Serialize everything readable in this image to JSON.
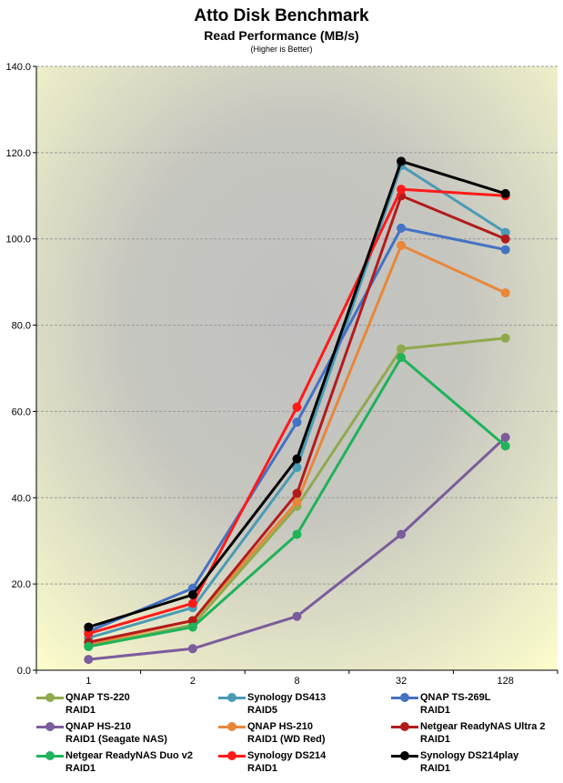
{
  "title": "Atto Disk Benchmark",
  "subtitle": "Read Performance (MB/s)",
  "note": "(Higher is Better)",
  "chart_data": {
    "type": "line",
    "x": [
      "1",
      "2",
      "8",
      "32",
      "128"
    ],
    "ylim": [
      0,
      140
    ],
    "yticks": [
      "0.0",
      "20.0",
      "40.0",
      "60.0",
      "80.0",
      "100.0",
      "120.0",
      "140.0"
    ],
    "grid": true,
    "legend_position": "bottom",
    "series": [
      {
        "name": "QNAP TS-220",
        "name2": "RAID1",
        "color": "#8faa4c",
        "values": [
          5.5,
          10.5,
          38,
          74.5,
          77
        ]
      },
      {
        "name": "Synology DS413",
        "name2": "RAID5",
        "color": "#4a9bb5",
        "values": [
          7.5,
          14.5,
          47,
          117,
          101.5
        ]
      },
      {
        "name": "QNAP TS-269L",
        "name2": "RAID1",
        "color": "#4472c4",
        "values": [
          9,
          19,
          57.5,
          102.5,
          97.5
        ]
      },
      {
        "name": "QNAP HS-210",
        "name2": "RAID1 (Seagate NAS)",
        "color": "#7b5c9c",
        "values": [
          2.5,
          5,
          12.5,
          31.5,
          54
        ]
      },
      {
        "name": "QNAP HS-210",
        "name2": "RAID1 (WD Red)",
        "color": "#e8873a",
        "values": [
          6,
          11.5,
          39,
          98.5,
          87.5
        ]
      },
      {
        "name": "Netgear ReadyNAS Ultra 2",
        "name2": "RAID1",
        "color": "#b31b1b",
        "values": [
          6.5,
          11.5,
          41,
          110,
          100
        ]
      },
      {
        "name": "Netgear ReadyNAS Duo v2",
        "name2": "RAID1",
        "color": "#1fb35a",
        "values": [
          5.5,
          10,
          31.5,
          72.5,
          52
        ]
      },
      {
        "name": "Synology DS214",
        "name2": "RAID1",
        "color": "#ff1a1a",
        "values": [
          8.5,
          15.5,
          61,
          111.5,
          110
        ]
      },
      {
        "name": "Synology DS214play",
        "name2": "RAID1",
        "color": "#000000",
        "values": [
          10,
          17.5,
          49,
          118,
          110.5
        ]
      }
    ]
  }
}
